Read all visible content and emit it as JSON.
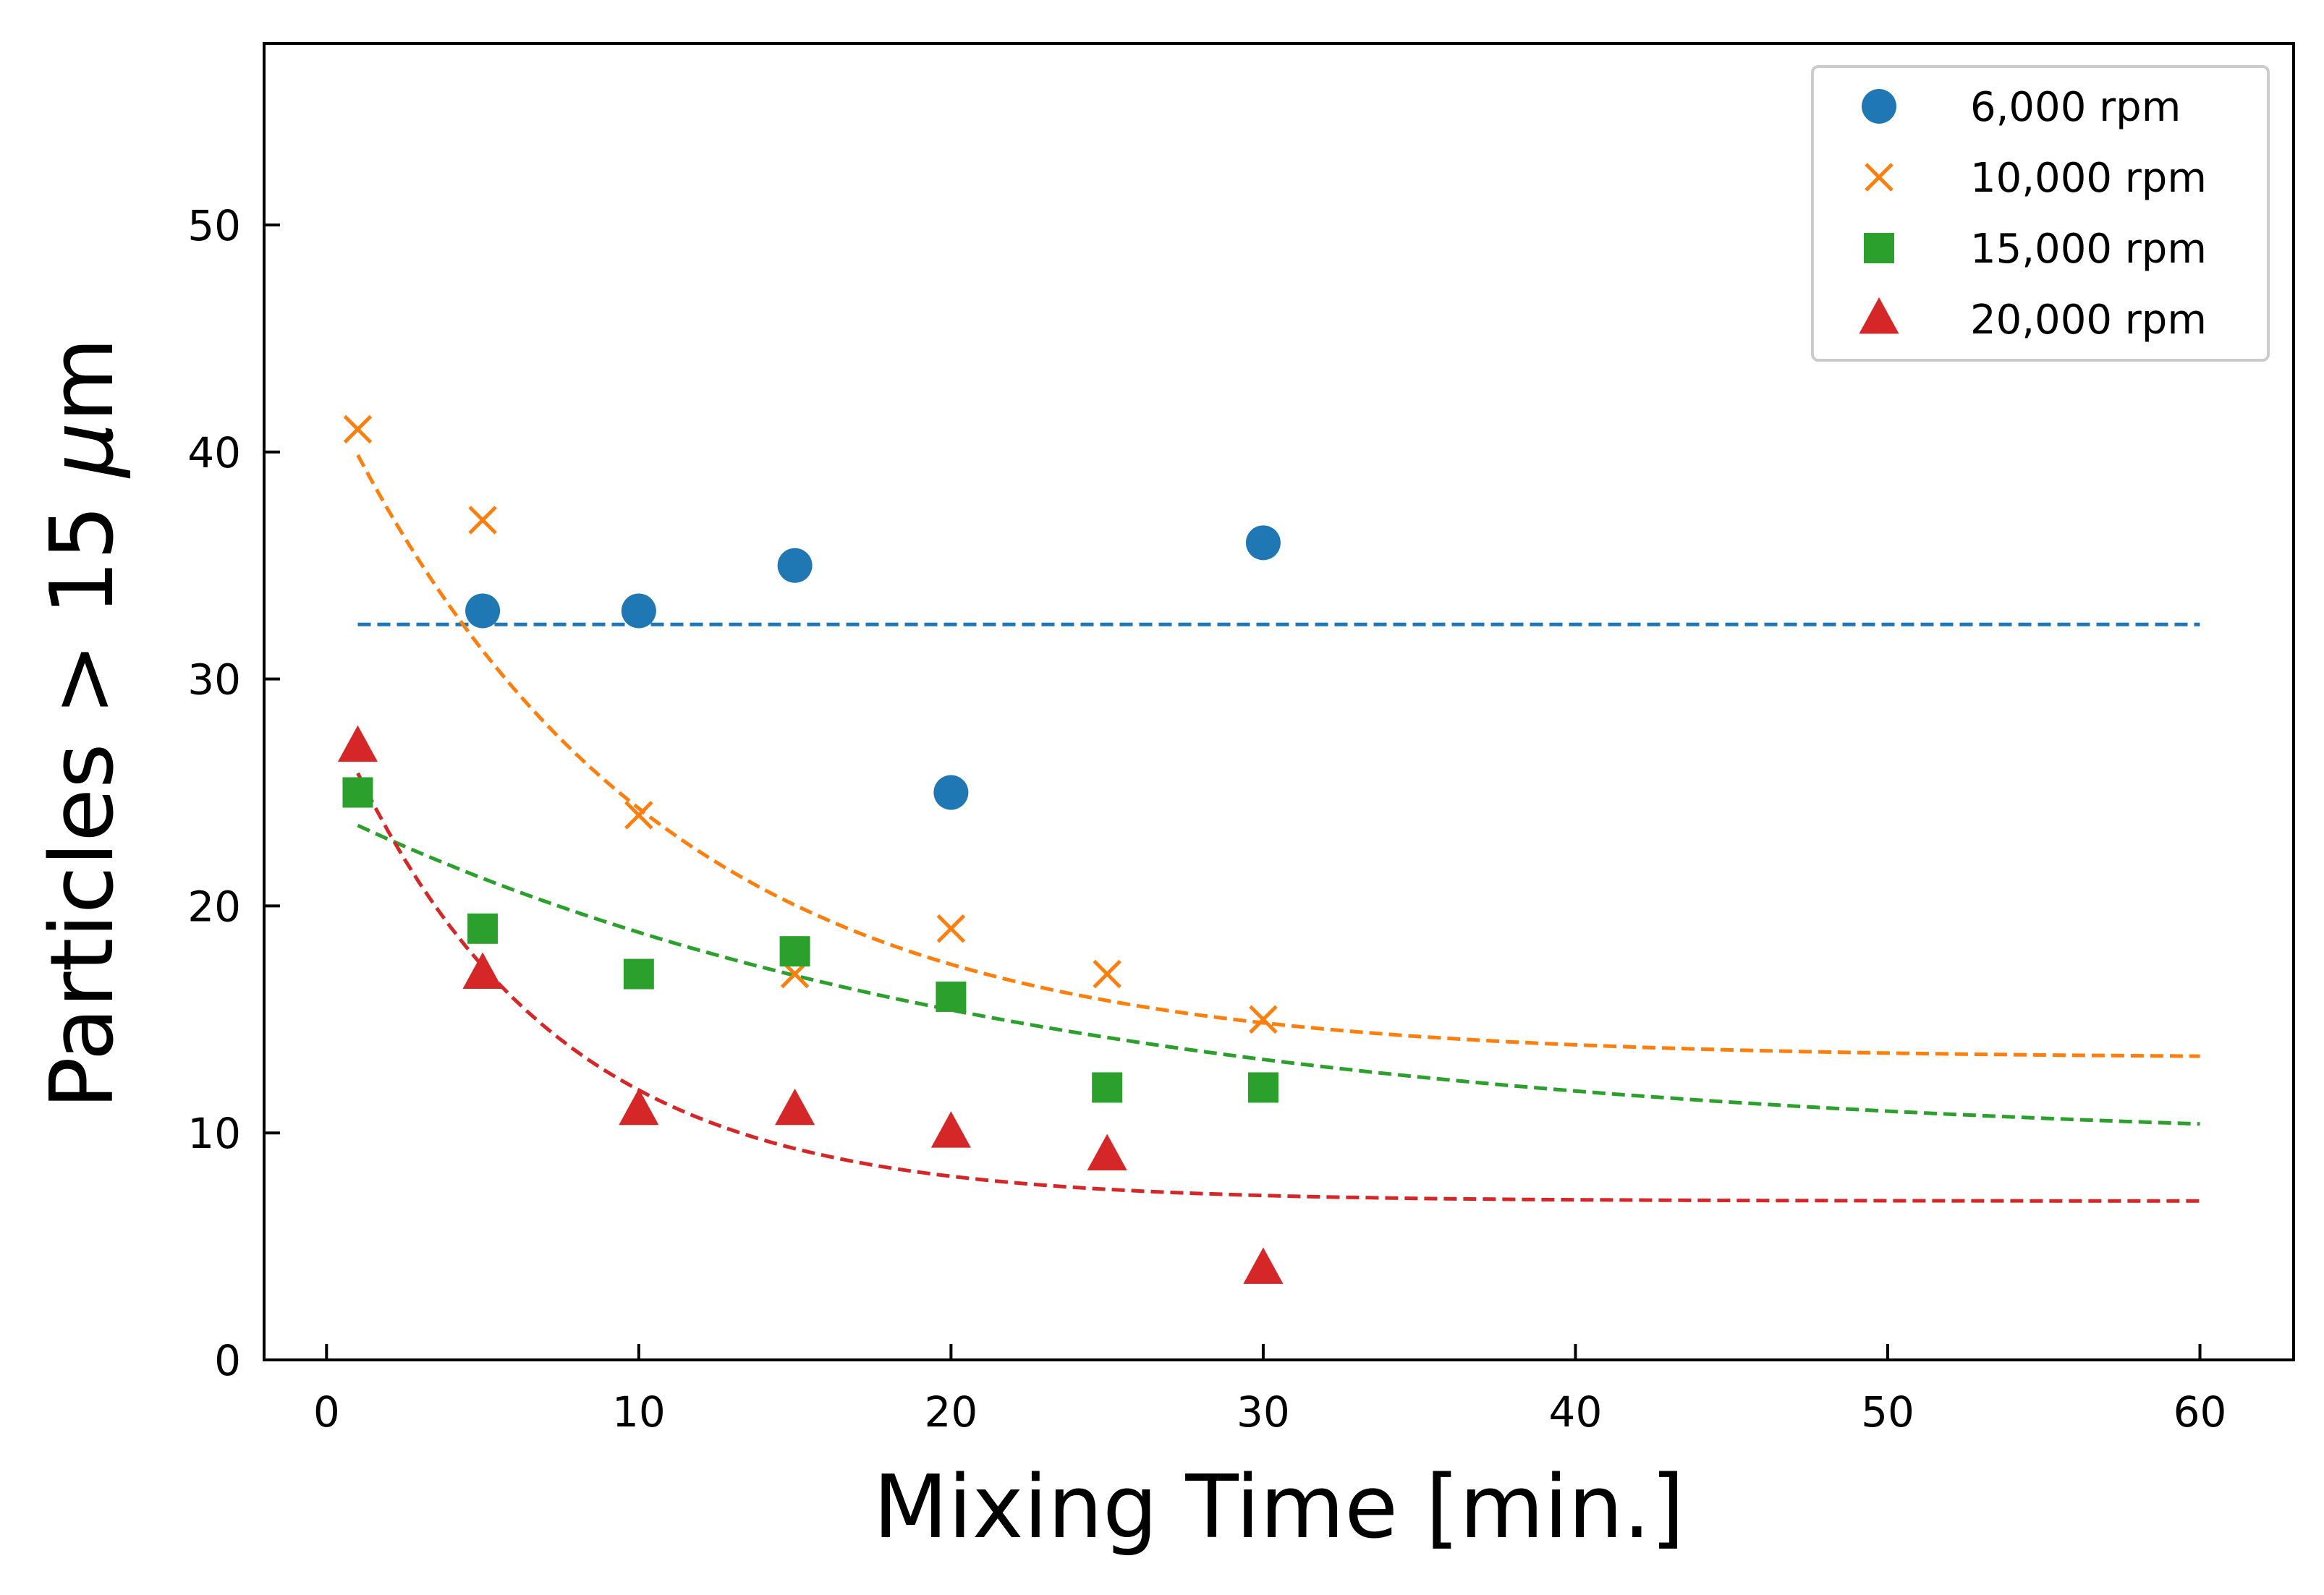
{
  "chart_data": {
    "type": "scatter",
    "title": "",
    "xlabel": "Mixing Time [min.]",
    "ylabel_parts": [
      "Particles > 15 ",
      "μ",
      "m"
    ],
    "xlim": [
      -2,
      63
    ],
    "ylim": [
      0,
      58
    ],
    "xticks": [
      0,
      10,
      20,
      30,
      40,
      50,
      60
    ],
    "yticks": [
      0,
      10,
      20,
      30,
      40,
      50
    ],
    "xtick_labels": [
      "0",
      "10",
      "20",
      "30",
      "40",
      "50",
      "60"
    ],
    "ytick_labels": [
      "0",
      "10",
      "20",
      "30",
      "40",
      "50"
    ],
    "grid": false,
    "legend_position": "top-right",
    "series": [
      {
        "name": "6,000 rpm",
        "color": "#1f77b4",
        "marker": "circle",
        "x": [
          5,
          10,
          15,
          20,
          30
        ],
        "y": [
          33,
          33,
          35,
          25,
          36
        ],
        "fit": {
          "model": "constant",
          "c": 32.4,
          "x_range": [
            1,
            60
          ]
        }
      },
      {
        "name": "10,000 rpm",
        "color": "#ff7f0e",
        "marker": "x",
        "x": [
          1,
          5,
          10,
          15,
          20,
          25,
          30
        ],
        "y": [
          41,
          37,
          24,
          17,
          19,
          17,
          15
        ],
        "fit": {
          "model": "exp",
          "a": 13.3,
          "b": 29.3,
          "k": 0.098,
          "x_range": [
            1,
            60
          ]
        }
      },
      {
        "name": "15,000 rpm",
        "color": "#2ca02c",
        "marker": "square",
        "x": [
          1,
          5,
          10,
          15,
          20,
          25,
          30
        ],
        "y": [
          25,
          19,
          17,
          18,
          16,
          12,
          12
        ],
        "fit": {
          "model": "exp",
          "a": 9.4,
          "b": 14.8,
          "k": 0.045,
          "x_range": [
            1,
            60
          ]
        }
      },
      {
        "name": "20,000 rpm",
        "color": "#d62728",
        "marker": "triangle",
        "x": [
          1,
          5,
          10,
          15,
          20,
          25,
          30
        ],
        "y": [
          27,
          17,
          11,
          11,
          10,
          9,
          4
        ],
        "fit": {
          "model": "exp",
          "a": 7.0,
          "b": 21.9,
          "k": 0.15,
          "x_range": [
            1,
            60
          ]
        }
      }
    ]
  }
}
